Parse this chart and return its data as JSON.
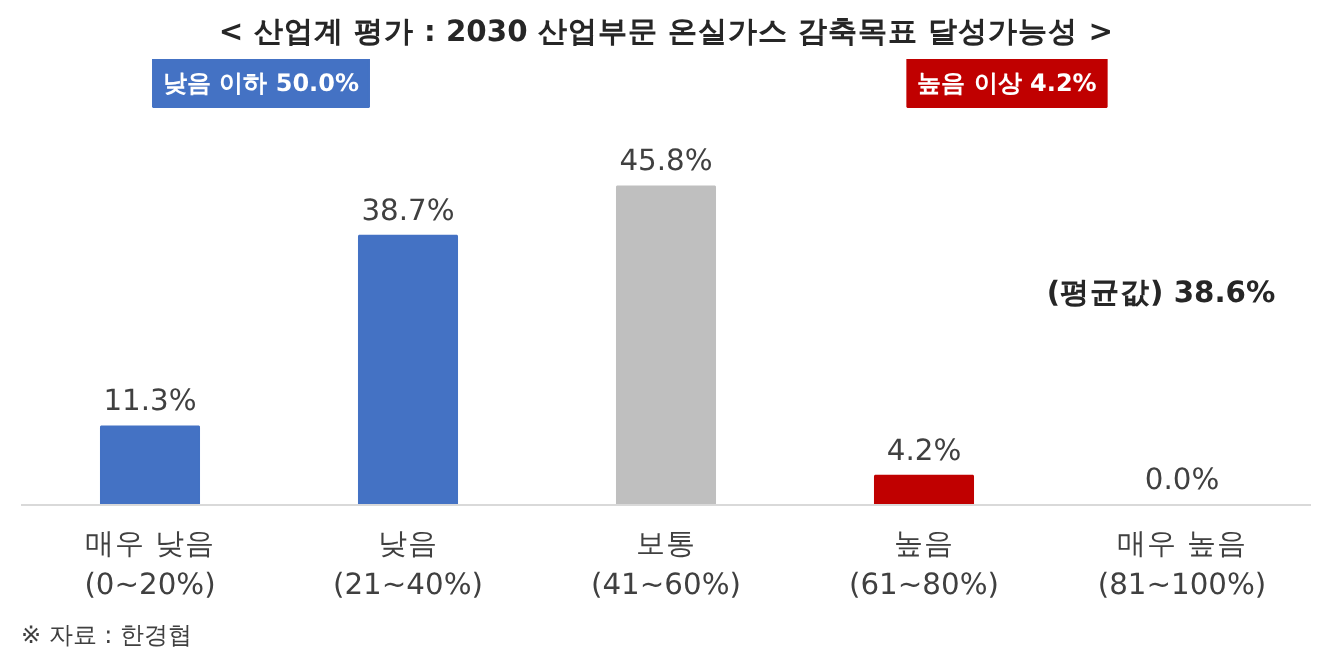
{
  "chart_data": {
    "type": "bar",
    "title": "< 산업계 평가 : 2030 산업부문 온실가스 감축목표 달성가능성 >",
    "categories": [
      "매우 낮음\n(0~20%)",
      "낮음\n(21~40%)",
      "보통\n(41~60%)",
      "높음\n(61~80%)",
      "매우 높음\n(81~100%)"
    ],
    "values": [
      11.3,
      38.7,
      45.8,
      4.2,
      0.0
    ],
    "colors": [
      "#4472c4",
      "#4472c4",
      "#bfbfbf",
      "#c00000",
      "#4472c4"
    ],
    "value_labels": [
      "11.3%",
      "38.7%",
      "45.8%",
      "4.2%",
      "0.0%"
    ],
    "annotations": [
      "낮음 이하 50.0%",
      "높음 이상 4.2%",
      "(평균값) 38.6%",
      "※ 자료 : 한경협"
    ]
  }
}
